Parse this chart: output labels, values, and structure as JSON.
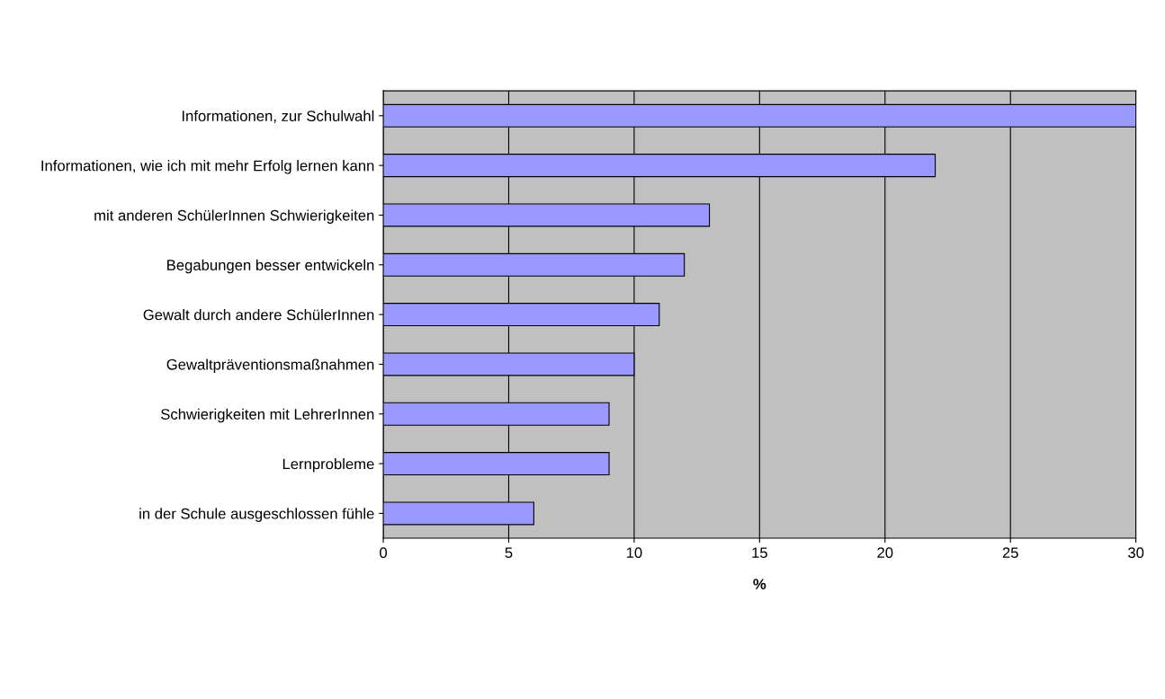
{
  "chart_data": {
    "type": "bar",
    "orientation": "horizontal",
    "xlabel": "%",
    "categories": [
      "Informationen, zur Schulwahl",
      "Informationen, wie ich mit mehr Erfolg lernen kann",
      "mit anderen SchülerInnen Schwierigkeiten",
      "Begabungen besser entwickeln",
      "Gewalt durch andere SchülerInnen",
      "Gewaltpräventionsmaßnahmen",
      "Schwierigkeiten mit LehrerInnen",
      "Lernprobleme",
      "in der Schule ausgeschlossen fühle"
    ],
    "values": [
      30,
      22,
      13,
      12,
      11,
      10,
      9,
      9,
      6
    ],
    "color": "#9999ff",
    "xlim": [
      0,
      30
    ],
    "xticks": [
      0,
      5,
      10,
      15,
      20,
      25,
      30
    ],
    "grid": "x",
    "legend": false
  }
}
